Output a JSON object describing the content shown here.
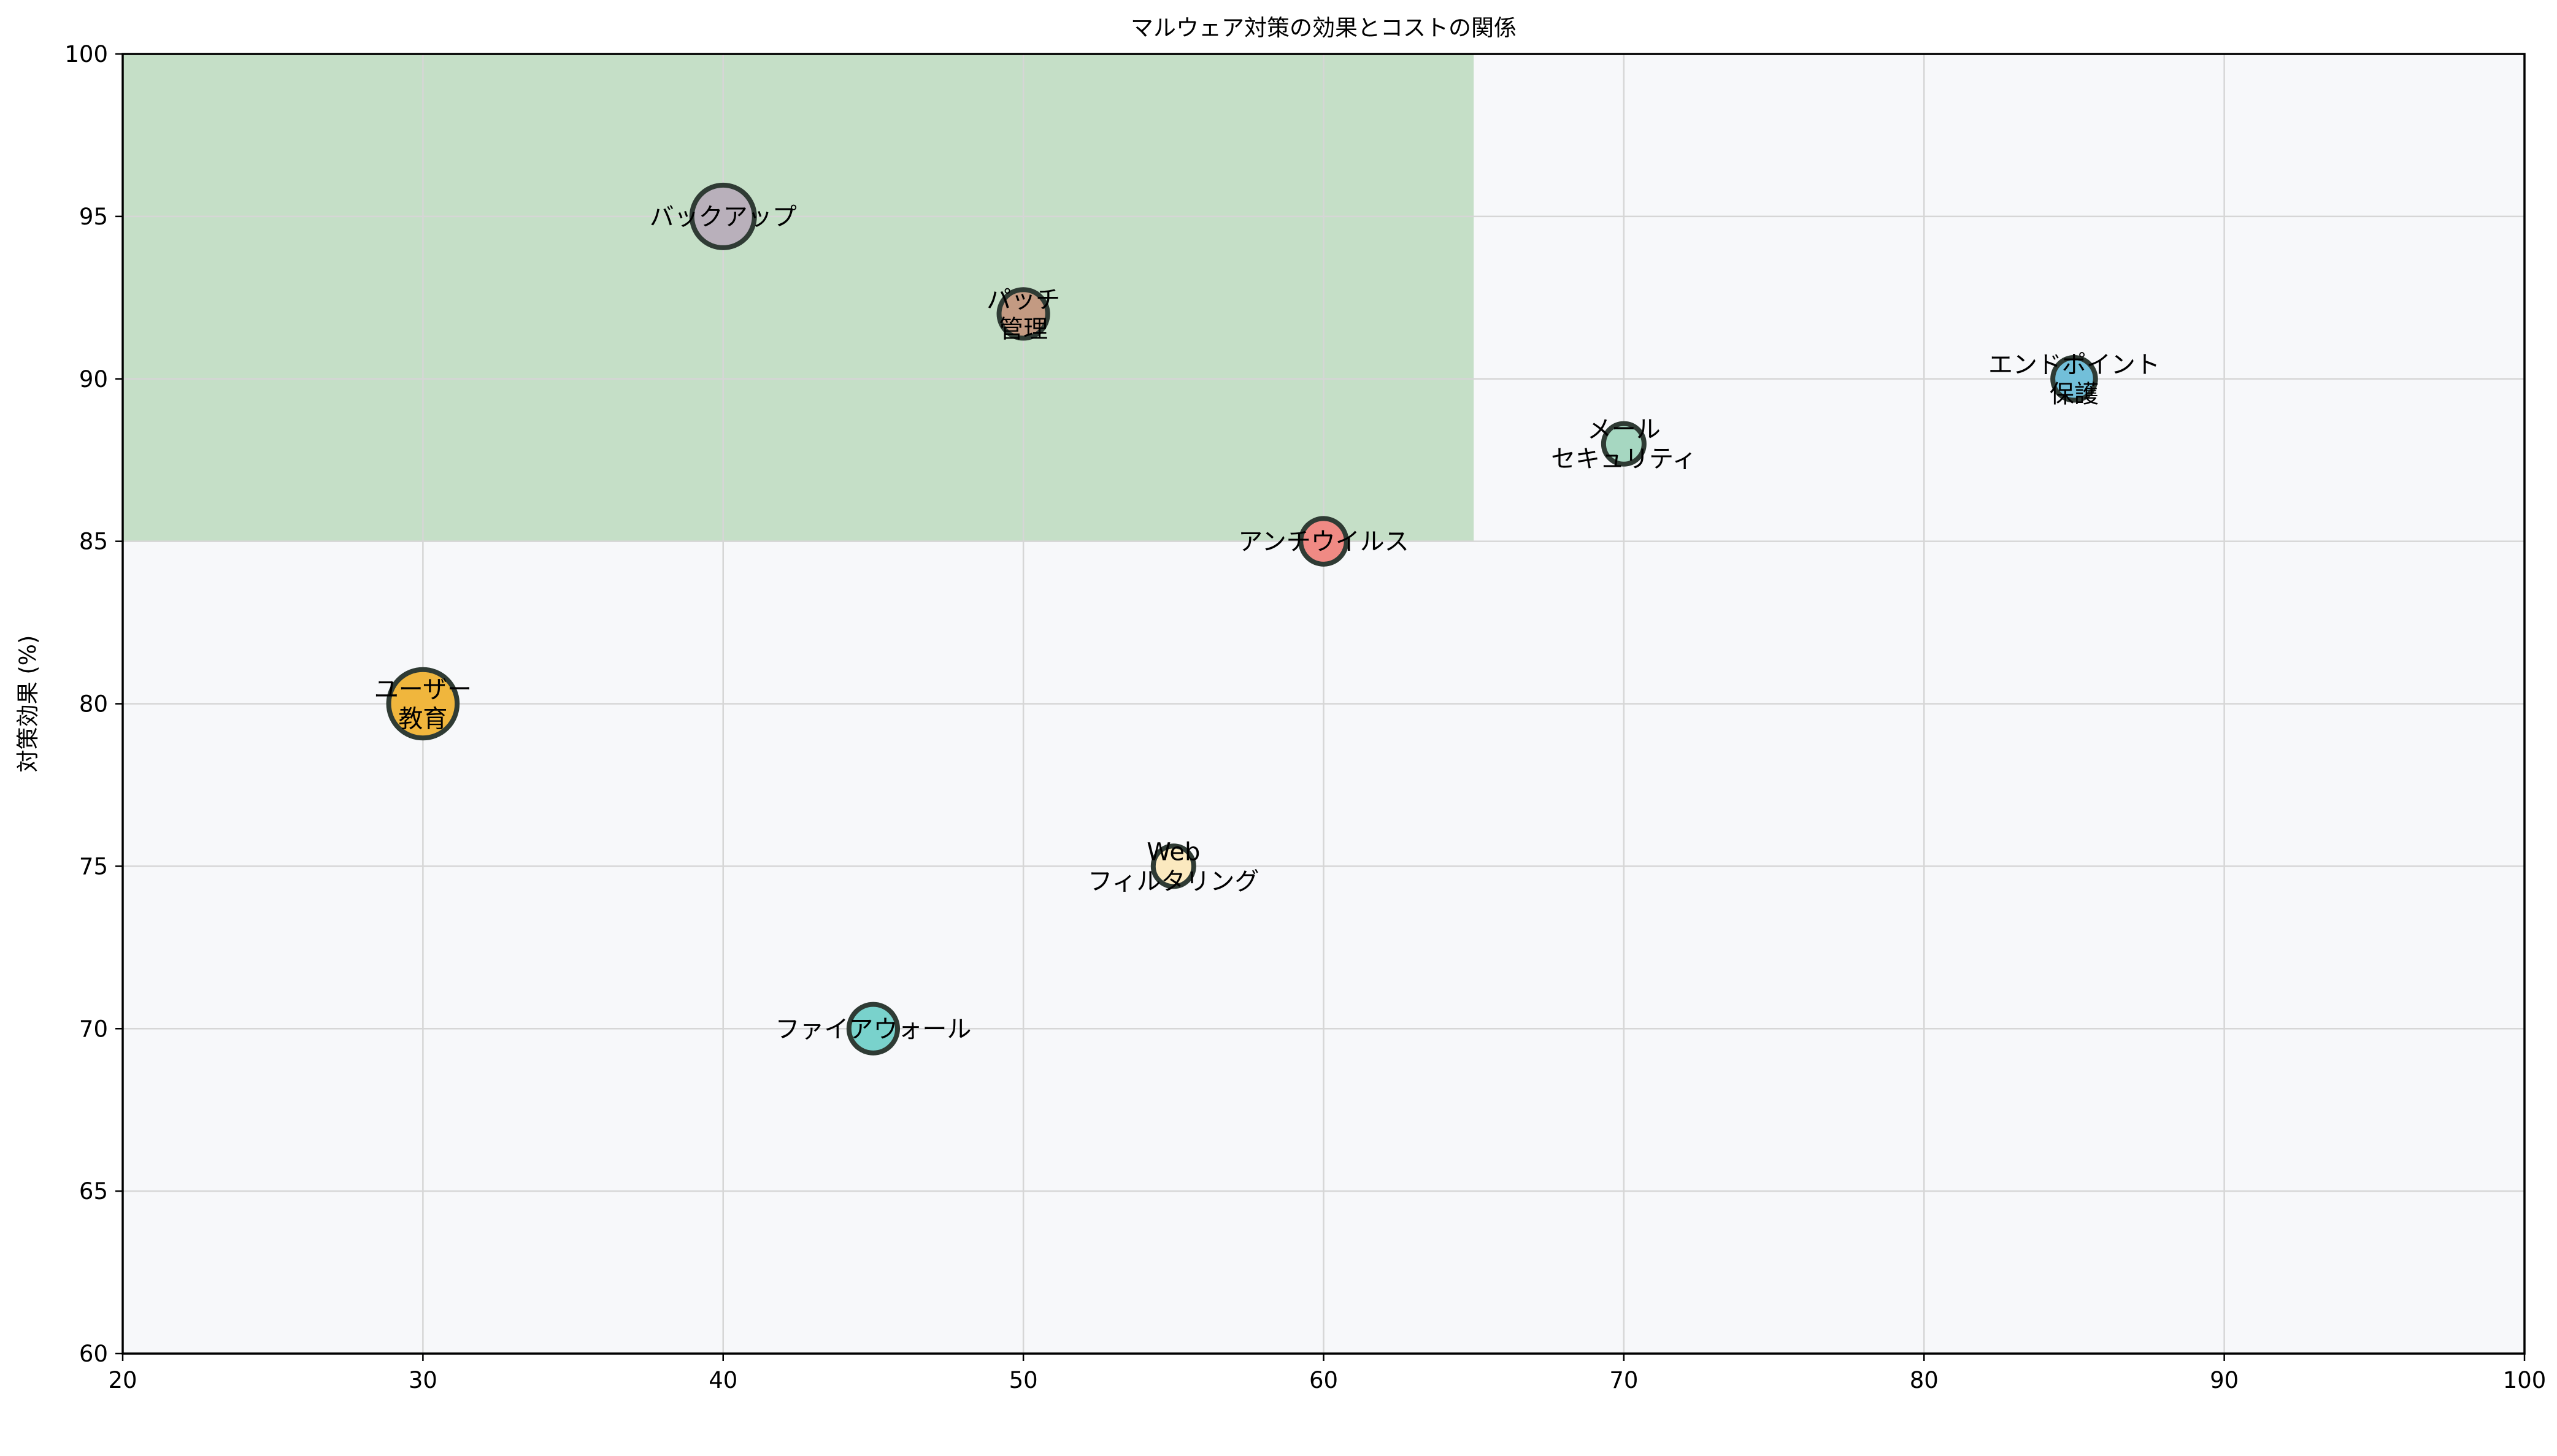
{
  "chart_data": {
    "type": "scatter",
    "title": "マルウェア対策の効果とコストの関係",
    "xlabel": "",
    "ylabel": "対策効果 (%)",
    "xlim": [
      20,
      100
    ],
    "ylim": [
      60,
      100
    ],
    "x_ticks": [
      20,
      30,
      40,
      50,
      60,
      70,
      80,
      90,
      100
    ],
    "y_ticks": [
      60,
      65,
      70,
      75,
      80,
      85,
      90,
      95,
      100
    ],
    "grid": true,
    "plot_background": "#f7f8fa",
    "highlight_region": {
      "x": [
        20,
        65
      ],
      "y": [
        85,
        100
      ],
      "color": "#c5dfc7"
    },
    "points": [
      {
        "label": "アンチウイルス",
        "x": 60,
        "y": 85,
        "size": 0.62,
        "color": "#f08a84"
      },
      {
        "label": "ファイアウォール",
        "x": 45,
        "y": 70,
        "size": 0.66,
        "color": "#79d2cc"
      },
      {
        "label": "メール\nセキュリティ",
        "x": 70,
        "y": 88,
        "size": 0.55,
        "color": "#a6d7c1"
      },
      {
        "label": "Web\nフィルタリング",
        "x": 55,
        "y": 75,
        "size": 0.55,
        "color": "#fbe9bf"
      },
      {
        "label": "エンドポイント\n保護",
        "x": 85,
        "y": 90,
        "size": 0.58,
        "color": "#72bfd9"
      },
      {
        "label": "ユーザー\n教育",
        "x": 30,
        "y": 80,
        "size": 0.93,
        "color": "#f0b63d"
      },
      {
        "label": "パッチ\n管理",
        "x": 50,
        "y": 92,
        "size": 0.66,
        "color": "#c39a82"
      },
      {
        "label": "バックアップ",
        "x": 40,
        "y": 95,
        "size": 0.85,
        "color": "#b9b0bb"
      }
    ]
  }
}
